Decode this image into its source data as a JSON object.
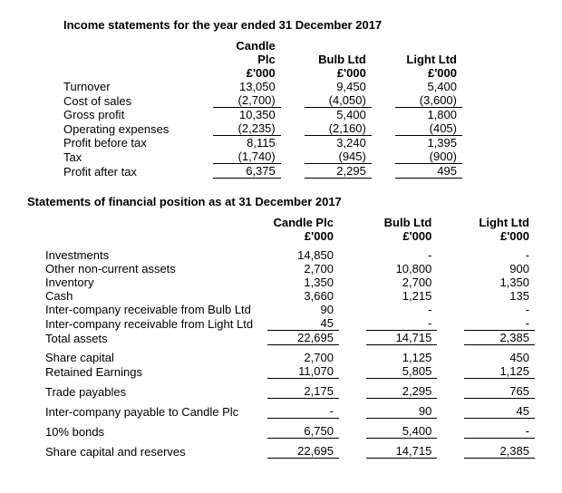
{
  "income": {
    "title": "Income statements for the year ended 31 December 2017",
    "headers": {
      "c1": "Candle Plc",
      "c2": "Bulb Ltd",
      "c3": "Light Ltd",
      "u": "£'000"
    },
    "rows": {
      "turnover": {
        "label": "Turnover",
        "c1": "13,050",
        "c2": "9,450",
        "c3": "5,400"
      },
      "cost": {
        "label": "Cost of sales",
        "c1": "(2,700)",
        "c2": "(4,050)",
        "c3": "(3,600)"
      },
      "gross": {
        "label": "Gross profit",
        "c1": "10,350",
        "c2": "5,400",
        "c3": "1,800"
      },
      "opex": {
        "label": "Operating expenses",
        "c1": "(2,235)",
        "c2": "(2,160)",
        "c3": "(405)"
      },
      "pbt": {
        "label": "Profit before tax",
        "c1": "8,115",
        "c2": "3,240",
        "c3": "1,395"
      },
      "tax": {
        "label": "Tax",
        "c1": "(1,740)",
        "c2": "(945)",
        "c3": "(900)"
      },
      "pat": {
        "label": "Profit after tax",
        "c1": "6,375",
        "c2": "2,295",
        "c3": "495"
      }
    }
  },
  "sofp": {
    "title": "Statements of financial position as at 31 December 2017",
    "headers": {
      "c1": "Candle Plc",
      "c2": "Bulb Ltd",
      "c3": "Light Ltd",
      "u": "£'000"
    },
    "rows": {
      "inv": {
        "label": "Investments",
        "c1": "14,850",
        "c2": "-",
        "c3": "-"
      },
      "onca": {
        "label": "Other non-current assets",
        "c1": "2,700",
        "c2": "10,800",
        "c3": "900"
      },
      "invy": {
        "label": "Inventory",
        "c1": "1,350",
        "c2": "2,700",
        "c3": "1,350"
      },
      "cash": {
        "label": "Cash",
        "c1": "3,660",
        "c2": "1,215",
        "c3": "135"
      },
      "icrb": {
        "label": "Inter-company receivable from Bulb Ltd",
        "c1": "90",
        "c2": "-",
        "c3": "-"
      },
      "icrl": {
        "label": "Inter-company receivable from  Light Ltd",
        "c1": "45",
        "c2": "-",
        "c3": "-"
      },
      "ta": {
        "label": "Total assets",
        "c1": "22,695",
        "c2": "14,715",
        "c3": "2,385"
      },
      "sc": {
        "label": "Share capital",
        "c1": "2,700",
        "c2": "1,125",
        "c3": "450"
      },
      "re": {
        "label": "Retained Earnings",
        "c1": "11,070",
        "c2": "5,805",
        "c3": "1,125"
      },
      "tp": {
        "label": "Trade payables",
        "c1": "2,175",
        "c2": "2,295",
        "c3": "765"
      },
      "icp": {
        "label": "Inter-company payable to Candle Plc",
        "c1": "-",
        "c2": "90",
        "c3": "45"
      },
      "bonds": {
        "label": "10% bonds",
        "c1": "6,750",
        "c2": "5,400",
        "c3": "-"
      },
      "scr": {
        "label": "Share capital and reserves",
        "c1": "22,695",
        "c2": "14,715",
        "c3": "2,385"
      }
    }
  }
}
